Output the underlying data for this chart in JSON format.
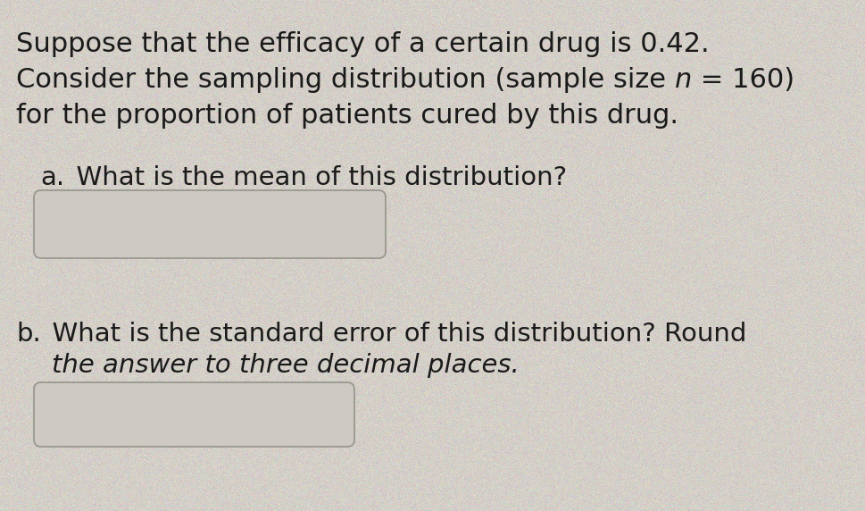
{
  "background_color": "#d4cfc8",
  "text_color": "#1a1a1a",
  "box_facecolor": "#cec9c2",
  "box_edgecolor": "#999990",
  "font_size_main": 22,
  "font_size_parts": 21,
  "figure_width": 9.7,
  "figure_height": 5.72,
  "dpi": 100,
  "line1": "Suppose that the efficacy of a certain drug is 0.42.",
  "line2_pre": "Consider the sampling distribution (sample size ",
  "line2_n": "n",
  "line2_post": " = 160)",
  "line3": "for the proportion of patients cured by this drug.",
  "part_a_label": "a.",
  "part_a_text": "  What is the mean of this distribution?",
  "part_b_label": "b.",
  "part_b_line1": "  What is the standard error of this distribution? Round",
  "part_b_line2": "    the answer to three decimal places."
}
